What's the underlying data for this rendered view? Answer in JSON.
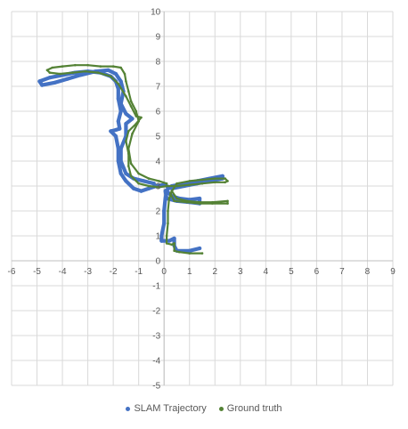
{
  "chart_data": {
    "type": "scatter",
    "title": "",
    "xlabel": "",
    "ylabel": "",
    "xlim": [
      -6,
      9
    ],
    "ylim": [
      -5,
      10
    ],
    "xticks": [
      -6,
      -5,
      -4,
      -3,
      -2,
      -1,
      0,
      1,
      2,
      3,
      4,
      5,
      6,
      7,
      8,
      9
    ],
    "yticks": [
      -5,
      -4,
      -3,
      -2,
      -1,
      0,
      1,
      2,
      3,
      4,
      5,
      6,
      7,
      8,
      9,
      10
    ],
    "grid": true,
    "legend_position": "bottom",
    "series": [
      {
        "name": "SLAM Trajectory",
        "color": "#4472C4",
        "points": [
          [
            1.4,
            0.5
          ],
          [
            1.0,
            0.4
          ],
          [
            0.5,
            0.4
          ],
          [
            0.4,
            0.6
          ],
          [
            0.4,
            0.9
          ],
          [
            0.2,
            0.8
          ],
          [
            -0.1,
            0.8
          ],
          [
            -0.1,
            1.0
          ],
          [
            0.0,
            1.5
          ],
          [
            0.0,
            2.0
          ],
          [
            0.05,
            2.5
          ],
          [
            0.1,
            2.8
          ],
          [
            0.3,
            2.6
          ],
          [
            0.6,
            2.5
          ],
          [
            1.0,
            2.45
          ],
          [
            1.4,
            2.5
          ],
          [
            1.4,
            2.3
          ],
          [
            1.0,
            2.35
          ],
          [
            0.5,
            2.4
          ],
          [
            0.1,
            2.5
          ],
          [
            0.05,
            2.8
          ],
          [
            0.3,
            3.0
          ],
          [
            0.8,
            3.1
          ],
          [
            1.3,
            3.2
          ],
          [
            1.8,
            3.3
          ],
          [
            2.3,
            3.4
          ],
          [
            2.3,
            3.3
          ],
          [
            1.8,
            3.2
          ],
          [
            1.3,
            3.1
          ],
          [
            0.8,
            3.0
          ],
          [
            0.3,
            2.9
          ],
          [
            0.0,
            3.05
          ],
          [
            -0.3,
            3.0
          ],
          [
            -0.6,
            2.9
          ],
          [
            -0.9,
            2.8
          ],
          [
            -1.2,
            2.9
          ],
          [
            -1.5,
            3.2
          ],
          [
            -1.7,
            3.5
          ],
          [
            -1.8,
            4.0
          ],
          [
            -1.8,
            4.5
          ],
          [
            -1.9,
            5.0
          ],
          [
            -2.1,
            5.2
          ],
          [
            -1.9,
            5.25
          ],
          [
            -1.75,
            5.3
          ],
          [
            -1.8,
            5.6
          ],
          [
            -1.7,
            6.0
          ],
          [
            -1.8,
            6.5
          ],
          [
            -1.8,
            6.9
          ],
          [
            -1.9,
            7.2
          ],
          [
            -2.1,
            7.4
          ],
          [
            -2.5,
            7.55
          ],
          [
            -3.0,
            7.6
          ],
          [
            -3.5,
            7.55
          ],
          [
            -4.0,
            7.45
          ],
          [
            -4.5,
            7.35
          ],
          [
            -4.9,
            7.2
          ],
          [
            -4.8,
            7.05
          ],
          [
            -4.3,
            7.15
          ],
          [
            -3.8,
            7.3
          ],
          [
            -3.3,
            7.45
          ],
          [
            -2.7,
            7.6
          ],
          [
            -2.2,
            7.65
          ],
          [
            -1.9,
            7.5
          ],
          [
            -1.7,
            7.2
          ],
          [
            -1.6,
            6.8
          ],
          [
            -1.7,
            6.3
          ],
          [
            -1.5,
            5.9
          ],
          [
            -1.25,
            5.7
          ],
          [
            -1.5,
            5.5
          ],
          [
            -1.5,
            5.0
          ],
          [
            -1.7,
            4.5
          ],
          [
            -1.7,
            4.0
          ],
          [
            -1.5,
            3.5
          ],
          [
            -1.2,
            3.3
          ],
          [
            -0.8,
            3.2
          ],
          [
            -0.4,
            3.1
          ]
        ]
      },
      {
        "name": "Ground truth",
        "color": "#548235",
        "points": [
          [
            1.5,
            0.3
          ],
          [
            1.0,
            0.3
          ],
          [
            0.6,
            0.35
          ],
          [
            0.4,
            0.4
          ],
          [
            0.4,
            0.7
          ],
          [
            0.3,
            0.65
          ],
          [
            0.1,
            0.7
          ],
          [
            0.1,
            1.0
          ],
          [
            0.15,
            1.5
          ],
          [
            0.15,
            2.0
          ],
          [
            0.2,
            2.5
          ],
          [
            0.3,
            2.8
          ],
          [
            0.5,
            2.5
          ],
          [
            0.9,
            2.4
          ],
          [
            1.4,
            2.35
          ],
          [
            1.9,
            2.35
          ],
          [
            2.5,
            2.4
          ],
          [
            2.5,
            2.3
          ],
          [
            1.9,
            2.3
          ],
          [
            1.4,
            2.3
          ],
          [
            0.9,
            2.35
          ],
          [
            0.4,
            2.4
          ],
          [
            0.25,
            2.7
          ],
          [
            0.5,
            3.1
          ],
          [
            1.0,
            3.2
          ],
          [
            1.5,
            3.25
          ],
          [
            2.0,
            3.3
          ],
          [
            2.4,
            3.3
          ],
          [
            2.5,
            3.2
          ],
          [
            2.4,
            3.15
          ],
          [
            2.0,
            3.15
          ],
          [
            1.5,
            3.1
          ],
          [
            1.0,
            3.05
          ],
          [
            0.5,
            3.0
          ],
          [
            0.1,
            3.0
          ],
          [
            -0.2,
            2.95
          ],
          [
            -0.6,
            3.0
          ],
          [
            -1.0,
            3.1
          ],
          [
            -1.3,
            3.4
          ],
          [
            -1.4,
            3.8
          ],
          [
            -1.4,
            4.3
          ],
          [
            -1.5,
            4.8
          ],
          [
            -1.4,
            5.2
          ],
          [
            -1.1,
            5.5
          ],
          [
            -0.9,
            5.75
          ],
          [
            -1.1,
            5.8
          ],
          [
            -1.3,
            6.2
          ],
          [
            -1.5,
            6.6
          ],
          [
            -1.8,
            7.1
          ],
          [
            -2.1,
            7.4
          ],
          [
            -2.6,
            7.55
          ],
          [
            -3.1,
            7.6
          ],
          [
            -3.6,
            7.55
          ],
          [
            -4.1,
            7.5
          ],
          [
            -4.5,
            7.55
          ],
          [
            -4.6,
            7.65
          ],
          [
            -4.4,
            7.75
          ],
          [
            -4.0,
            7.8
          ],
          [
            -3.5,
            7.85
          ],
          [
            -3.0,
            7.85
          ],
          [
            -2.5,
            7.8
          ],
          [
            -2.0,
            7.8
          ],
          [
            -1.7,
            7.75
          ],
          [
            -1.55,
            7.5
          ],
          [
            -1.5,
            7.2
          ],
          [
            -1.4,
            6.8
          ],
          [
            -1.3,
            6.4
          ],
          [
            -1.1,
            6.0
          ],
          [
            -1.0,
            5.6
          ],
          [
            -1.25,
            5.1
          ],
          [
            -1.4,
            4.5
          ],
          [
            -1.3,
            3.9
          ],
          [
            -1.0,
            3.5
          ],
          [
            -0.6,
            3.3
          ],
          [
            -0.2,
            3.2
          ],
          [
            0.1,
            3.1
          ]
        ]
      }
    ]
  }
}
